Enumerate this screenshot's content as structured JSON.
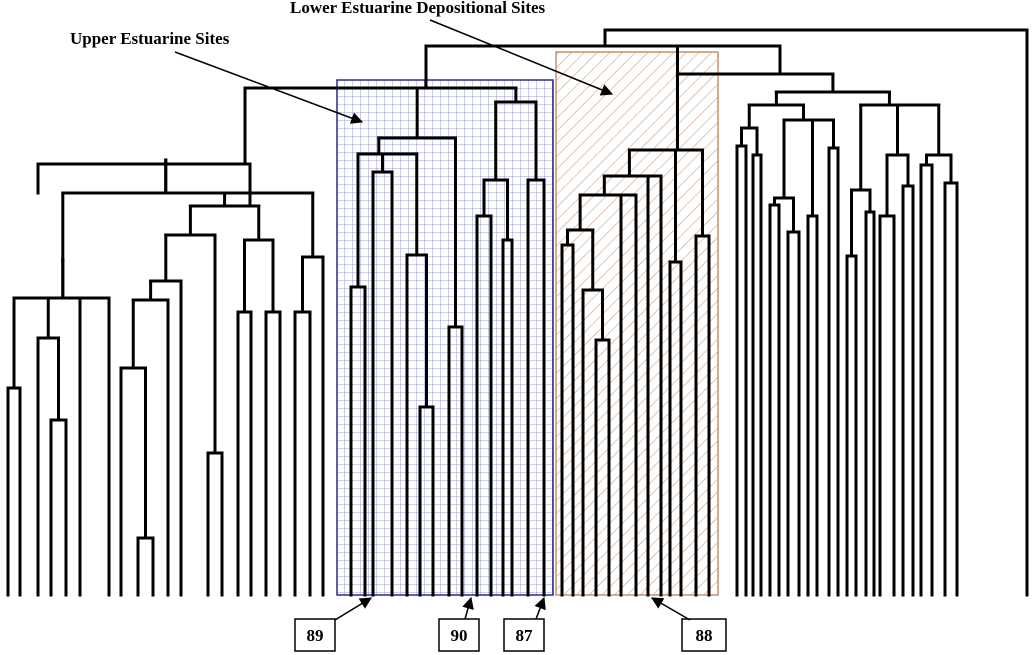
{
  "annotations": {
    "upper_estuarine": "Upper Estuarine Sites",
    "lower_estuarine": "Lower Estuarine Depositional Sites"
  },
  "site_labels": [
    "89",
    "90",
    "87",
    "88"
  ],
  "colors": {
    "upper_box": "#2b2b8c",
    "upper_grid": "#7f7fd0",
    "lower_box": "#c8906a",
    "lower_hatch": "#c49a7c",
    "tree": "#000000"
  }
}
